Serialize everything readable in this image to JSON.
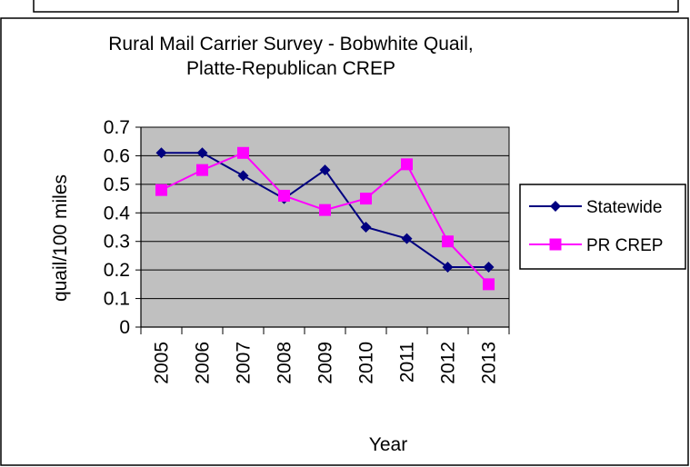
{
  "chart_data": {
    "type": "line",
    "title_line1": "Rural Mail Carrier Survey - Bobwhite Quail,",
    "title_line2": "Platte-Republican CREP",
    "xlabel": "Year",
    "ylabel": "quail/100 miles",
    "categories": [
      "2005",
      "2006",
      "2007",
      "2008",
      "2009",
      "2010",
      "2011",
      "2012",
      "2013"
    ],
    "ylim": [
      0,
      0.7
    ],
    "yticks": [
      "0",
      "0.1",
      "0.2",
      "0.3",
      "0.4",
      "0.5",
      "0.6",
      "0.7"
    ],
    "grid": true,
    "legend_position": "right",
    "series": [
      {
        "name": "Statewide",
        "color": "#000080",
        "marker": "diamond",
        "values": [
          0.61,
          0.61,
          0.53,
          0.45,
          0.55,
          0.35,
          0.31,
          0.21,
          0.21
        ]
      },
      {
        "name": "PR CREP",
        "color": "#FF00FF",
        "marker": "square",
        "values": [
          0.48,
          0.55,
          0.61,
          0.46,
          0.41,
          0.45,
          0.57,
          0.3,
          0.15
        ]
      }
    ],
    "plot_background": "#C0C0C0"
  }
}
